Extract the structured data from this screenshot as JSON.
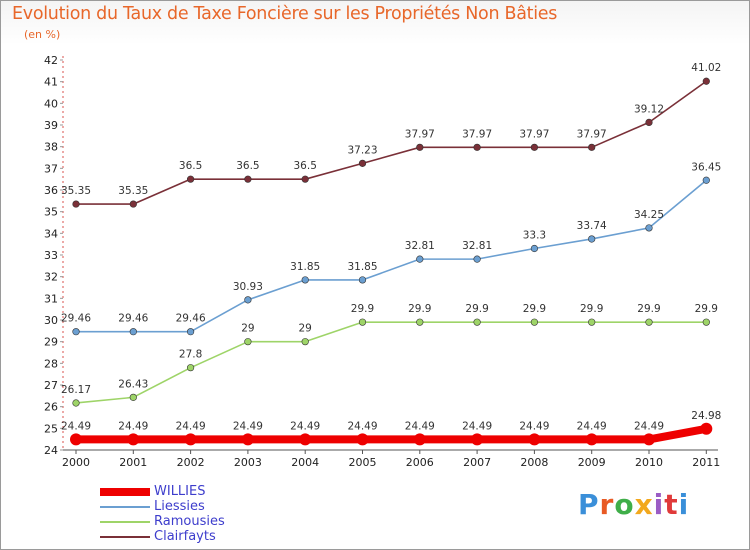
{
  "header": {
    "title": "Evolution du Taux de Taxe Foncière sur les Propriétés Non Bâties",
    "unit": "(en %)"
  },
  "logo": {
    "text": "Proxiti",
    "colors": [
      "#3a8fd9",
      "#e85a24",
      "#3fae49",
      "#f2a81d",
      "#9b5cc4",
      "#e03a3a",
      "#3a8fd9"
    ]
  },
  "chart_data": {
    "type": "line",
    "x": [
      "2000",
      "2001",
      "2002",
      "2003",
      "2004",
      "2005",
      "2006",
      "2007",
      "2008",
      "2009",
      "2010",
      "2011"
    ],
    "ylim": [
      24,
      42
    ],
    "yticks": [
      "24",
      "25",
      "26",
      "27",
      "28",
      "29",
      "30",
      "31",
      "32",
      "33",
      "34",
      "35",
      "36",
      "37",
      "38",
      "39",
      "40",
      "41",
      "42"
    ],
    "grid": false,
    "legend": "bottom-left",
    "series": [
      {
        "name": "WILLIES",
        "color": "#ee0000",
        "values": [
          24.49,
          24.49,
          24.49,
          24.49,
          24.49,
          24.49,
          24.49,
          24.49,
          24.49,
          24.49,
          24.49,
          24.98
        ],
        "labels": [
          "24.49",
          "24.49",
          "24.49",
          "24.49",
          "24.49",
          "24.49",
          "24.49",
          "24.49",
          "24.49",
          "24.49",
          "24.49",
          "24.98"
        ]
      },
      {
        "name": "Liessies",
        "color": "#6b9fd1",
        "values": [
          29.46,
          29.46,
          29.46,
          30.93,
          31.85,
          31.85,
          32.81,
          32.81,
          33.3,
          33.74,
          34.25,
          36.45
        ],
        "labels": [
          "29.46",
          "29.46",
          "29.46",
          "30.93",
          "31.85",
          "31.85",
          "32.81",
          "32.81",
          "33.3",
          "33.74",
          "34.25",
          "36.45"
        ]
      },
      {
        "name": "Ramousies",
        "color": "#9ed468",
        "values": [
          26.17,
          26.43,
          27.8,
          29,
          29,
          29.9,
          29.9,
          29.9,
          29.9,
          29.9,
          29.9,
          29.9
        ],
        "labels": [
          "26.17",
          "26.43",
          "27.8",
          "29",
          "29",
          "29.9",
          "29.9",
          "29.9",
          "29.9",
          "29.9",
          "29.9",
          "29.9"
        ]
      },
      {
        "name": "Clairfayts",
        "color": "#7a3038",
        "values": [
          35.35,
          35.35,
          36.5,
          36.5,
          36.5,
          37.23,
          37.97,
          37.97,
          37.97,
          37.97,
          39.12,
          41.02
        ],
        "labels": [
          "35.35",
          "35.35",
          "36.5",
          "36.5",
          "36.5",
          "37.23",
          "37.97",
          "37.97",
          "37.97",
          "37.97",
          "39.12",
          "41.02"
        ]
      }
    ]
  }
}
